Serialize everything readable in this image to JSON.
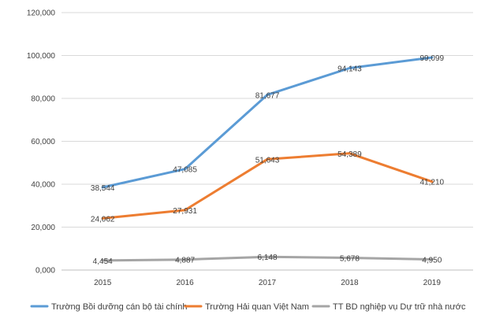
{
  "chart_data": {
    "type": "line",
    "title": "",
    "xlabel": "",
    "ylabel": "",
    "categories": [
      "2015",
      "2016",
      "2017",
      "2018",
      "2019"
    ],
    "ylim": [
      0,
      120000
    ],
    "yticks": [
      0,
      20000,
      40000,
      60000,
      80000,
      100000,
      120000
    ],
    "ytick_labels": [
      "0,000",
      "20,000",
      "40,000",
      "60,000",
      "80,000",
      "100,000",
      "120,000"
    ],
    "grid": true,
    "legend_position": "bottom",
    "series": [
      {
        "name": "Trường Bồi dưỡng cán bộ tài chính",
        "color": "#5B9BD5",
        "values": [
          38544,
          47085,
          81677,
          94143,
          99099
        ],
        "labels": [
          "38,544",
          "47,085",
          "81,677",
          "94,143",
          "99,099"
        ]
      },
      {
        "name": "Trường Hải quan Việt Nam",
        "color": "#ED7D31",
        "values": [
          24062,
          27931,
          51643,
          54389,
          41210
        ],
        "labels": [
          "24,062",
          "27,931",
          "51,643",
          "54,389",
          "41,210"
        ]
      },
      {
        "name": "TT BD nghiệp vụ Dự trữ nhà nước",
        "color": "#A5A5A5",
        "values": [
          4454,
          4887,
          6148,
          5678,
          4950
        ],
        "labels": [
          "4,454",
          "4,887",
          "6,148",
          "5,678",
          "4,950"
        ]
      }
    ]
  }
}
